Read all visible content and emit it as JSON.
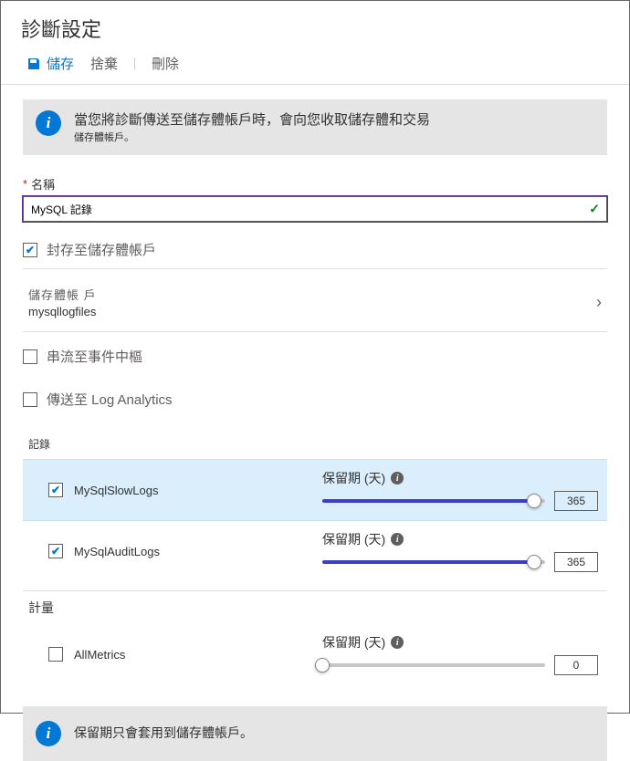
{
  "title": "診斷設定",
  "toolbar": {
    "save_label": "儲存",
    "discard_label": "捨棄",
    "delete_label": "刪除"
  },
  "banner_top": {
    "main": "當您將診斷傳送至儲存體帳戶時，會向您收取儲存體和交易",
    "sub": "儲存體帳戶。"
  },
  "name_field": {
    "label": "名稱",
    "value": "MySQL 記錄"
  },
  "options": {
    "archive_label": "封存至儲存體帳戶",
    "archive_checked": true,
    "stream_label": "串流至事件中樞",
    "stream_checked": false,
    "la_label": "傳送至 Log Analytics",
    "la_checked": false
  },
  "storage_picker": {
    "label": "儲存體帳 戶",
    "value": "mysqllogfiles"
  },
  "logs": {
    "section_label": "記錄",
    "retention_label": "保留期 (天)",
    "items": [
      {
        "name": "MySqlSlowLogs",
        "checked": true,
        "retention": 365,
        "fill_pct": 95,
        "selected": true
      },
      {
        "name": "MySqlAuditLogs",
        "checked": true,
        "retention": 365,
        "fill_pct": 95,
        "selected": false
      }
    ]
  },
  "metrics": {
    "section_label": "計量",
    "retention_label": "保留期 (天)",
    "items": [
      {
        "name": "AllMetrics",
        "checked": false,
        "retention": 0,
        "fill_pct": 0,
        "selected": false
      }
    ]
  },
  "banner_bottom": {
    "text": "保留期只會套用到儲存體帳戶。"
  },
  "colors": {
    "primary": "#0078d4",
    "slider_fill": "#3b3fc4",
    "selected_row_bg": "#dbeefc"
  }
}
